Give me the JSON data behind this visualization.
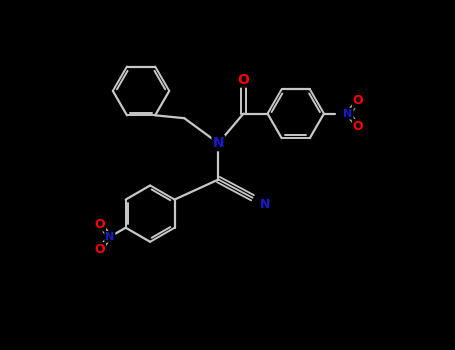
{
  "background_color": "#000000",
  "bond_color": "#c8c8c8",
  "atom_colors": {
    "N": "#1a1acd",
    "O": "#ff0000",
    "C": "#c8c8c8"
  },
  "figsize": [
    4.55,
    3.5
  ],
  "dpi": 100,
  "xlim": [
    0,
    10
  ],
  "ylim": [
    0,
    7.7
  ]
}
